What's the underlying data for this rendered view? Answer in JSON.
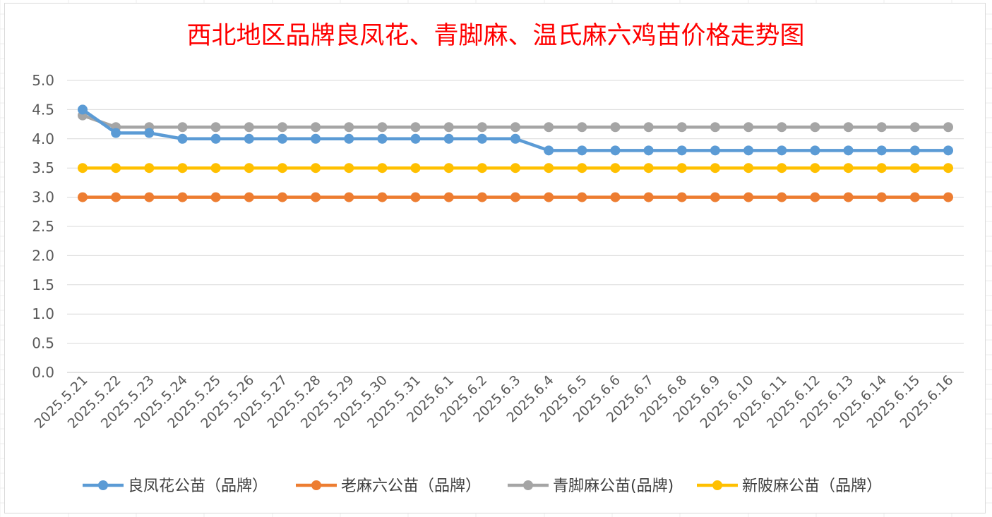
{
  "chart_data": {
    "type": "line",
    "title": "西北地区品牌良凤花、青脚麻、温氏麻六鸡苗价格走势图",
    "xlabel": "",
    "ylabel": "",
    "ylim": [
      0,
      5
    ],
    "y_ticks": [
      "0.0",
      "0.5",
      "1.0",
      "1.5",
      "2.0",
      "2.5",
      "3.0",
      "3.5",
      "4.0",
      "4.5",
      "5.0"
    ],
    "grid": true,
    "legend_position": "bottom",
    "categories": [
      "2025.5.21",
      "2025.5.22",
      "2025.5.23",
      "2025.5.24",
      "2025.5.25",
      "2025.5.26",
      "2025.5.27",
      "2025.5.28",
      "2025.5.29",
      "2025.5.30",
      "2025.5.31",
      "2025.6.1",
      "2025.6.2",
      "2025.6.3",
      "2025.6.4",
      "2025.6.5",
      "2025.6.6",
      "2025.6.7",
      "2025.6.8",
      "2025.6.9",
      "2025.6.10",
      "2025.6.11",
      "2025.6.12",
      "2025.6.13",
      "2025.6.14",
      "2025.6.15",
      "2025.6.16"
    ],
    "series": [
      {
        "name": "良凤花公苗（品牌）",
        "color": "#5b9bd5",
        "values": [
          4.5,
          4.1,
          4.1,
          4.0,
          4.0,
          4.0,
          4.0,
          4.0,
          4.0,
          4.0,
          4.0,
          4.0,
          4.0,
          4.0,
          3.8,
          3.8,
          3.8,
          3.8,
          3.8,
          3.8,
          3.8,
          3.8,
          3.8,
          3.8,
          3.8,
          3.8,
          3.8
        ]
      },
      {
        "name": "老麻六公苗（品牌）",
        "color": "#ed7d31",
        "values": [
          3.0,
          3.0,
          3.0,
          3.0,
          3.0,
          3.0,
          3.0,
          3.0,
          3.0,
          3.0,
          3.0,
          3.0,
          3.0,
          3.0,
          3.0,
          3.0,
          3.0,
          3.0,
          3.0,
          3.0,
          3.0,
          3.0,
          3.0,
          3.0,
          3.0,
          3.0,
          3.0
        ]
      },
      {
        "name": "青脚麻公苗(品牌)",
        "color": "#a5a5a5",
        "values": [
          4.4,
          4.2,
          4.2,
          4.2,
          4.2,
          4.2,
          4.2,
          4.2,
          4.2,
          4.2,
          4.2,
          4.2,
          4.2,
          4.2,
          4.2,
          4.2,
          4.2,
          4.2,
          4.2,
          4.2,
          4.2,
          4.2,
          4.2,
          4.2,
          4.2,
          4.2,
          4.2
        ]
      },
      {
        "name": "新陂麻公苗（品牌）",
        "color": "#ffc000",
        "values": [
          3.5,
          3.5,
          3.5,
          3.5,
          3.5,
          3.5,
          3.5,
          3.5,
          3.5,
          3.5,
          3.5,
          3.5,
          3.5,
          3.5,
          3.5,
          3.5,
          3.5,
          3.5,
          3.5,
          3.5,
          3.5,
          3.5,
          3.5,
          3.5,
          3.5,
          3.5,
          3.5
        ]
      }
    ],
    "draw_order": [
      1,
      3,
      2,
      0
    ]
  }
}
